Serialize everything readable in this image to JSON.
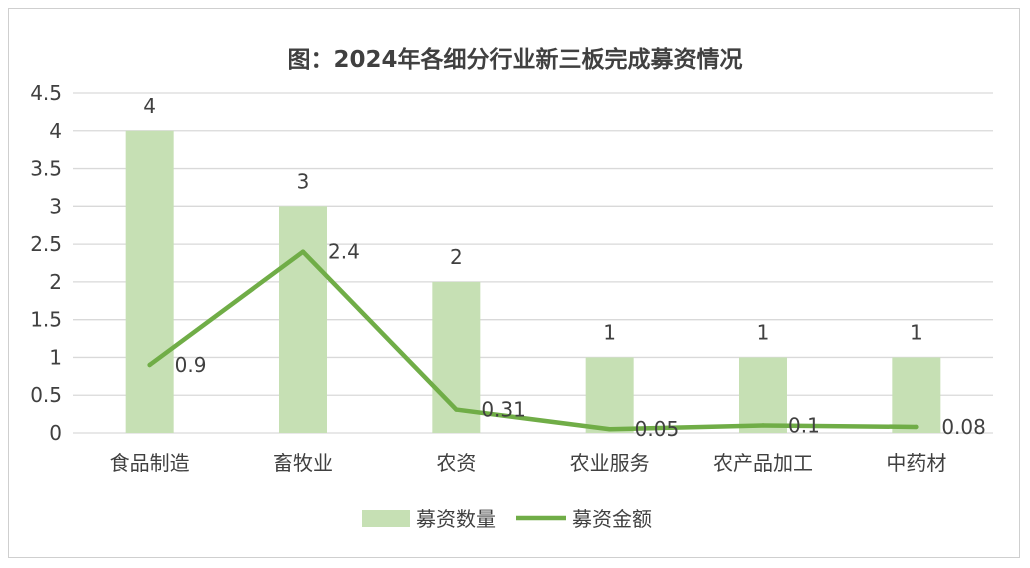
{
  "colors": {
    "bar": "#c6e0b4",
    "line": "#70ad47",
    "grid": "#d9d9d9",
    "text": "#404040"
  },
  "chart_data": {
    "type": "bar",
    "title": "图：2024年各细分行业新三板完成募资情况",
    "categories": [
      "食品制造",
      "畜牧业",
      "农资",
      "农业服务",
      "农产品加工",
      "中药材"
    ],
    "ylim": [
      0,
      4.5
    ],
    "yticks": [
      "4.5",
      "4",
      "3.5",
      "3",
      "2.5",
      "2",
      "1.5",
      "1",
      "0.5",
      "0"
    ],
    "grid": true,
    "legend": "bottom",
    "series": [
      {
        "name": "募资数量",
        "type": "bar",
        "values": [
          4,
          3,
          2,
          1,
          1,
          1
        ],
        "labels": [
          "4",
          "3",
          "2",
          "1",
          "1",
          "1"
        ]
      },
      {
        "name": "募资金额",
        "type": "line",
        "values": [
          0.9,
          2.4,
          0.31,
          0.05,
          0.1,
          0.08
        ],
        "labels": [
          "0.9",
          "2.4",
          "0.31",
          "0.05",
          "0.1",
          "0.08"
        ]
      }
    ]
  }
}
